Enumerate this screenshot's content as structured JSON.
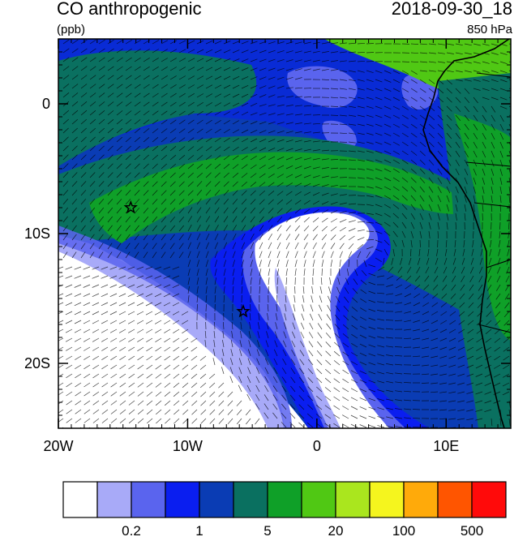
{
  "header": {
    "title": "CO anthropogenic",
    "units": "(ppb)",
    "time": "2018-09-30_18",
    "level": "850 hPa"
  },
  "map": {
    "lon_range": [
      -20,
      15
    ],
    "lat_range": [
      -25,
      5
    ],
    "x_ticks": [
      {
        "lon": -20,
        "label": "20W"
      },
      {
        "lon": -10,
        "label": "10W"
      },
      {
        "lon": 0,
        "label": "0"
      },
      {
        "lon": 10,
        "label": "10E"
      }
    ],
    "y_ticks": [
      {
        "lat": 0,
        "label": "0"
      },
      {
        "lat": -10,
        "label": "10S"
      },
      {
        "lat": -20,
        "label": "20S"
      }
    ],
    "markers": [
      {
        "name": "star",
        "lon": -14.4,
        "lat": -8.0
      },
      {
        "name": "star",
        "lon": -5.7,
        "lat": -16.0
      }
    ]
  },
  "colorbar": {
    "colors": [
      "#ffffff",
      "#a8aaf8",
      "#5a64ee",
      "#0a1ef0",
      "#0a3cb4",
      "#0a7060",
      "#0fa028",
      "#50c814",
      "#aae61e",
      "#f5f51e",
      "#ffaa0a",
      "#ff5500",
      "#ff0a0a"
    ],
    "labels": [
      {
        "after_box": 2,
        "text": "0.2"
      },
      {
        "after_box": 4,
        "text": "1"
      },
      {
        "after_box": 6,
        "text": "5"
      },
      {
        "after_box": 8,
        "text": "20"
      },
      {
        "after_box": 10,
        "text": "100"
      },
      {
        "after_box": 12,
        "text": "500"
      }
    ]
  }
}
